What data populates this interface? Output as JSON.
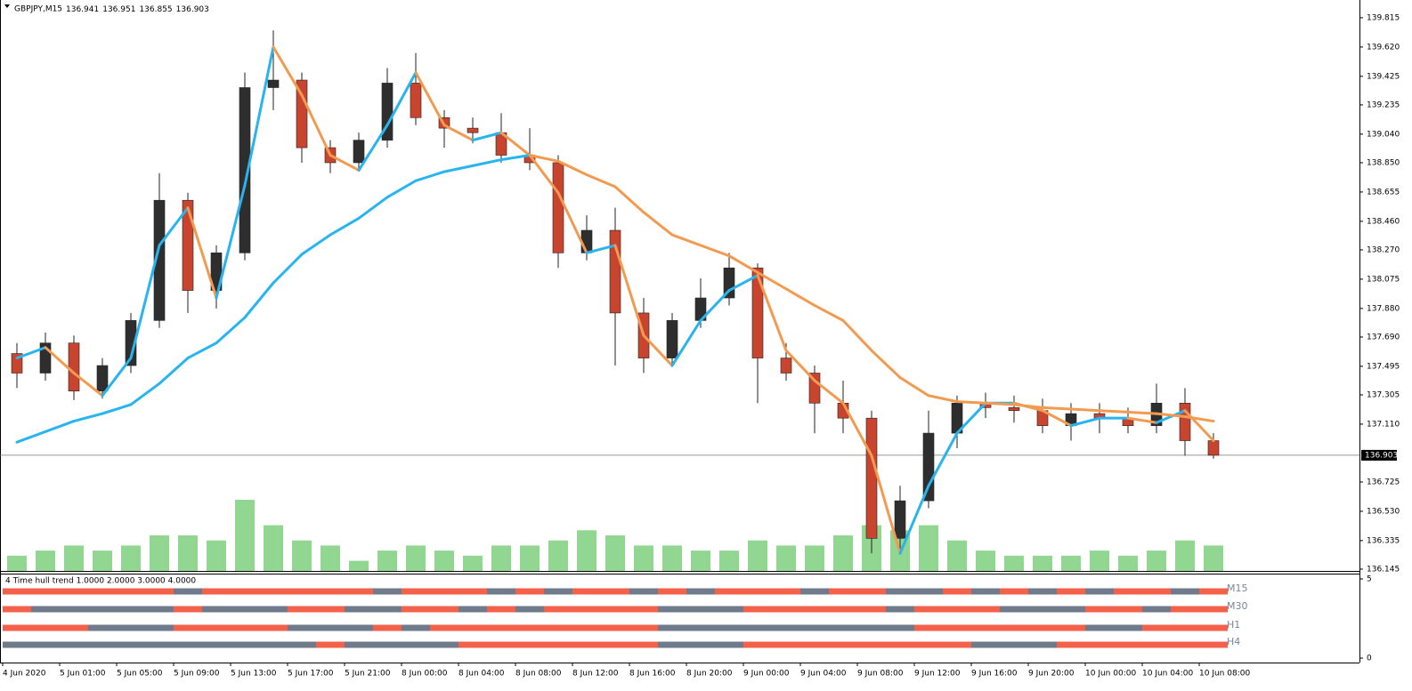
{
  "header": {
    "symbol": "GBPJPY,M15",
    "quote": [
      136.941,
      136.951,
      136.855,
      136.903
    ]
  },
  "chart_data": [
    {
      "type": "candlestick",
      "open": [
        137.58,
        137.45,
        137.65,
        137.33,
        137.5,
        137.8,
        138.6,
        138.0,
        138.25,
        139.35,
        139.4,
        138.95,
        138.85,
        139.0,
        139.38,
        139.15,
        139.08,
        139.05,
        138.9,
        138.85,
        138.25,
        138.4,
        137.85,
        137.55,
        137.8,
        137.95,
        138.15,
        137.55,
        137.45,
        137.25,
        137.15,
        136.35,
        136.6,
        137.05,
        137.25,
        137.22,
        137.2,
        137.1,
        137.18,
        137.15,
        137.1,
        137.25,
        137.0
      ],
      "high": [
        137.65,
        137.72,
        137.7,
        137.55,
        137.85,
        138.78,
        138.65,
        138.3,
        139.45,
        139.73,
        139.45,
        139.0,
        139.05,
        139.48,
        139.58,
        139.2,
        139.15,
        139.18,
        139.08,
        138.9,
        138.5,
        138.55,
        137.95,
        137.85,
        138.08,
        138.25,
        138.18,
        137.65,
        137.5,
        137.4,
        137.2,
        136.7,
        137.2,
        137.3,
        137.32,
        137.3,
        137.28,
        137.25,
        137.25,
        137.22,
        137.38,
        137.35,
        137.05
      ],
      "low": [
        137.35,
        137.4,
        137.27,
        137.28,
        137.45,
        137.75,
        137.85,
        137.88,
        138.2,
        139.2,
        138.85,
        138.78,
        138.8,
        138.95,
        139.1,
        138.95,
        138.98,
        138.85,
        138.8,
        138.15,
        138.2,
        137.5,
        137.45,
        137.5,
        137.75,
        137.9,
        137.25,
        137.4,
        137.05,
        137.05,
        136.25,
        136.28,
        136.55,
        136.95,
        137.15,
        137.12,
        137.05,
        137.0,
        137.05,
        137.05,
        137.05,
        136.9,
        136.88
      ],
      "close": [
        137.45,
        137.65,
        137.33,
        137.5,
        137.8,
        138.6,
        138.0,
        138.25,
        139.35,
        139.4,
        138.95,
        138.85,
        139.0,
        139.38,
        139.15,
        139.08,
        139.05,
        138.9,
        138.85,
        138.25,
        138.4,
        137.85,
        137.55,
        137.8,
        137.95,
        138.15,
        137.55,
        137.45,
        137.25,
        137.15,
        136.35,
        136.6,
        137.05,
        137.25,
        137.22,
        137.2,
        137.1,
        137.18,
        137.15,
        137.1,
        137.25,
        137.0,
        136.903
      ],
      "up_color": "#2e2e2e",
      "down_color": "#c8442e",
      "lines": [
        {
          "color_up": "#27b4ef",
          "color_down": "#f29b50",
          "values": [
            137.55,
            137.62,
            137.45,
            137.3,
            137.55,
            138.3,
            138.55,
            137.95,
            138.7,
            139.62,
            139.3,
            138.9,
            138.8,
            139.1,
            139.45,
            139.1,
            139.0,
            139.05,
            138.9,
            138.65,
            138.25,
            138.3,
            137.7,
            137.5,
            137.8,
            138.0,
            138.1,
            137.6,
            137.4,
            137.25,
            136.9,
            136.25,
            136.7,
            137.05,
            137.25,
            137.25,
            137.2,
            137.1,
            137.15,
            137.15,
            137.12,
            137.2,
            137.0
          ],
          "trend": [
            0,
            1,
            0,
            0,
            1,
            1,
            1,
            0,
            1,
            1,
            0,
            0,
            0,
            1,
            1,
            0,
            0,
            1,
            0,
            0,
            0,
            1,
            0,
            0,
            1,
            1,
            1,
            0,
            0,
            0,
            0,
            0,
            1,
            1,
            1,
            1,
            0,
            0,
            1,
            1,
            0,
            1,
            0
          ]
        },
        {
          "color_up": "#27b4ef",
          "color_down": "#f29b50",
          "values": [
            136.99,
            137.06,
            137.13,
            137.18,
            137.24,
            137.38,
            137.55,
            137.65,
            137.82,
            138.05,
            138.24,
            138.37,
            138.48,
            138.62,
            138.73,
            138.79,
            138.83,
            138.87,
            138.9,
            138.86,
            138.77,
            138.69,
            138.52,
            138.37,
            138.3,
            138.23,
            138.12,
            138.01,
            137.9,
            137.8,
            137.6,
            137.42,
            137.3,
            137.26,
            137.25,
            137.24,
            137.22,
            137.21,
            137.2,
            137.19,
            137.18,
            137.16,
            137.13
          ],
          "trend": [
            1,
            1,
            1,
            1,
            1,
            1,
            1,
            1,
            1,
            1,
            1,
            1,
            1,
            1,
            1,
            1,
            1,
            1,
            1,
            0,
            0,
            0,
            0,
            0,
            0,
            0,
            0,
            0,
            0,
            0,
            0,
            0,
            0,
            0,
            0,
            0,
            0,
            0,
            0,
            0,
            0,
            0,
            0
          ]
        }
      ],
      "volumes": {
        "color": "#6cc96c",
        "values": [
          15,
          20,
          25,
          20,
          25,
          35,
          35,
          30,
          70,
          45,
          30,
          25,
          10,
          20,
          25,
          20,
          15,
          25,
          25,
          30,
          40,
          35,
          25,
          25,
          20,
          20,
          30,
          25,
          25,
          35,
          45,
          40,
          45,
          30,
          20,
          15,
          15,
          15,
          20,
          15,
          20,
          30,
          25
        ]
      },
      "ylim": [
        136.133,
        139.933
      ],
      "yticks": [
        139.815,
        {
          "value": 139.62,
          "label": "139.620"
        },
        139.425,
        139.235,
        {
          "value": 139.04,
          "label": "139.040"
        },
        {
          "value": 138.85,
          "label": "138.850"
        },
        138.655,
        {
          "value": 138.46,
          "label": "138.460"
        },
        {
          "value": 138.27,
          "label": "138.270"
        },
        138.075,
        {
          "value": 137.88,
          "label": "137.880"
        },
        {
          "value": 137.69,
          "label": "137.690"
        },
        137.495,
        137.305,
        {
          "value": 137.11,
          "label": "137.110"
        },
        136.725,
        {
          "value": 136.53,
          "label": "136.530"
        },
        136.335,
        136.145
      ],
      "current_price": 136.903,
      "xtick_labels": [
        "4 Jun 2020",
        "5 Jun 01:00",
        "5 Jun 05:00",
        "5 Jun 09:00",
        "5 Jun 13:00",
        "5 Jun 17:00",
        "5 Jun 21:00",
        "8 Jun 00:00",
        "8 Jun 04:00",
        "8 Jun 08:00",
        "8 Jun 12:00",
        "8 Jun 16:00",
        "8 Jun 20:00",
        "9 Jun 00:00",
        "9 Jun 04:00",
        "9 Jun 08:00",
        "9 Jun 12:00",
        "9 Jun 16:00",
        "9 Jun 20:00",
        "10 Jun 00:00",
        "10 Jun 04:00",
        "10 Jun 08:00"
      ]
    },
    {
      "type": "hull_trend",
      "title": "4 Time hull trend 1.0000 2.0000 3.0000 4.0000",
      "ylim": [
        0,
        5
      ],
      "yticks": [
        5,
        0
      ],
      "colors": [
        "#6f7b8a",
        "#f4614a"
      ],
      "rows": [
        {
          "name": "M15",
          "states": [
            1,
            1,
            1,
            1,
            1,
            1,
            0,
            1,
            1,
            1,
            1,
            1,
            1,
            0,
            1,
            1,
            1,
            0,
            1,
            0,
            1,
            1,
            0,
            1,
            0,
            1,
            1,
            1,
            0,
            1,
            1,
            0,
            0,
            1,
            0,
            1,
            0,
            1,
            0,
            1,
            1,
            0,
            1
          ]
        },
        {
          "name": "M30",
          "states": [
            1,
            0,
            0,
            0,
            0,
            0,
            1,
            0,
            0,
            0,
            1,
            1,
            0,
            0,
            1,
            1,
            0,
            1,
            0,
            1,
            1,
            1,
            1,
            0,
            0,
            0,
            1,
            1,
            1,
            1,
            1,
            0,
            1,
            1,
            1,
            0,
            0,
            0,
            1,
            1,
            0,
            1,
            1
          ]
        },
        {
          "name": "H1",
          "states": [
            1,
            1,
            1,
            0,
            0,
            0,
            1,
            1,
            1,
            1,
            0,
            0,
            0,
            1,
            0,
            1,
            1,
            1,
            1,
            1,
            1,
            1,
            1,
            0,
            0,
            0,
            0,
            0,
            0,
            0,
            0,
            0,
            1,
            1,
            1,
            1,
            1,
            1,
            0,
            0,
            1,
            1,
            1
          ]
        },
        {
          "name": "H4",
          "states": [
            0,
            0,
            0,
            0,
            0,
            0,
            0,
            0,
            0,
            0,
            0,
            1,
            0,
            0,
            0,
            0,
            1,
            1,
            1,
            1,
            1,
            1,
            1,
            0,
            0,
            0,
            1,
            1,
            1,
            1,
            1,
            1,
            1,
            1,
            0,
            0,
            0,
            1,
            1,
            1,
            1,
            1,
            1
          ]
        }
      ]
    }
  ]
}
